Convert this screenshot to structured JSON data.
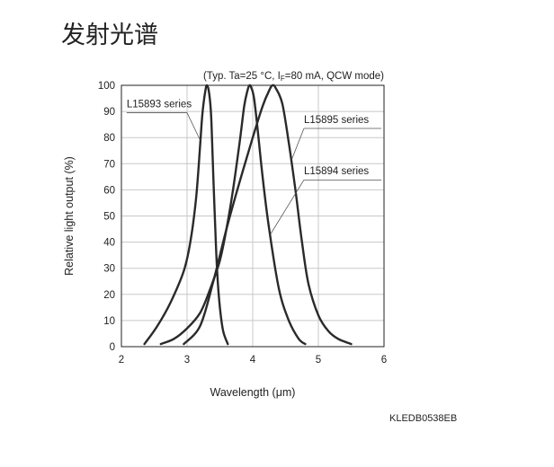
{
  "page": {
    "heading": "发射光谱",
    "figure_code": "KLEDB0538EB"
  },
  "chart_data": {
    "type": "line",
    "title": "",
    "subtitle": "",
    "conditions": "(Typ. Ta=25 °C, IF=80 mA, QCW mode)",
    "conditions_parts": {
      "prefix": "(Typ. Ta=25 °C, I",
      "subscript": "F",
      "suffix": "=80 mA, QCW mode)"
    },
    "xlabel": "Wavelength (μm)",
    "ylabel": "Relative light output (%)",
    "xlim": [
      2,
      6
    ],
    "ylim": [
      0,
      100
    ],
    "xticks": [
      "2",
      "3",
      "4",
      "5",
      "6"
    ],
    "yticks": [
      "0",
      "10",
      "20",
      "30",
      "40",
      "50",
      "60",
      "70",
      "80",
      "90",
      "100"
    ],
    "grid": true,
    "line_color": "#2a2a2a",
    "grid_color": "#c8c8c8",
    "series": [
      {
        "name": "L15893 series",
        "x": [
          2.35,
          2.55,
          2.75,
          2.95,
          3.05,
          3.13,
          3.18,
          3.22,
          3.25,
          3.28,
          3.3,
          3.33,
          3.36,
          3.38,
          3.4,
          3.43,
          3.46,
          3.5,
          3.55,
          3.62
        ],
        "y": [
          1,
          8,
          17,
          29,
          40,
          55,
          70,
          85,
          93,
          98,
          100,
          98,
          91,
          80,
          65,
          45,
          28,
          15,
          6,
          1
        ]
      },
      {
        "name": "L15894 series",
        "x": [
          2.6,
          2.8,
          3.0,
          3.2,
          3.35,
          3.5,
          3.6,
          3.7,
          3.8,
          3.87,
          3.92,
          3.95,
          3.98,
          4.02,
          4.08,
          4.15,
          4.25,
          4.4,
          4.55,
          4.7,
          4.8
        ],
        "y": [
          1,
          3,
          7,
          13,
          22,
          33,
          45,
          60,
          78,
          92,
          98,
          100,
          99,
          95,
          82,
          65,
          45,
          22,
          10,
          3,
          1
        ]
      },
      {
        "name": "L15895 series",
        "x": [
          2.95,
          3.2,
          3.4,
          3.6,
          3.8,
          4.0,
          4.15,
          4.25,
          4.3,
          4.35,
          4.45,
          4.55,
          4.65,
          4.75,
          4.85,
          5.0,
          5.15,
          5.3,
          5.5
        ],
        "y": [
          1,
          8,
          25,
          45,
          63,
          80,
          92,
          98,
          100,
          99,
          93,
          78,
          60,
          40,
          24,
          12,
          6,
          3,
          1
        ]
      }
    ],
    "annotations": [
      {
        "series": "L15893 series",
        "text": "L15893 series",
        "side": "left"
      },
      {
        "series": "L15895 series",
        "text": "L15895 series",
        "side": "right"
      },
      {
        "series": "L15894 series",
        "text": "L15894 series",
        "side": "right"
      }
    ]
  }
}
